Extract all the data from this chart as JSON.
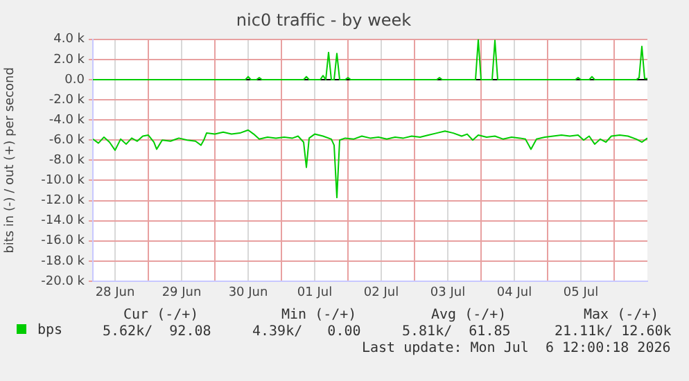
{
  "chart_data": {
    "type": "line",
    "title": "nic0 traffic - by week",
    "ylabel": "bits in (-) / out (+) per second",
    "xlim": [
      "2026-06-28T04:00",
      "2026-07-06T12:00"
    ],
    "xticks": [
      {
        "value": "2026-06-28T12:00",
        "label": "28 Jun"
      },
      {
        "value": "2026-06-29T00:00",
        "label": null
      },
      {
        "value": "2026-06-29T12:00",
        "label": "29 Jun"
      },
      {
        "value": "2026-06-30T00:00",
        "label": null
      },
      {
        "value": "2026-06-30T12:00",
        "label": "30 Jun"
      },
      {
        "value": "2026-07-01T00:00",
        "label": null
      },
      {
        "value": "2026-07-01T12:00",
        "label": "01 Jul"
      },
      {
        "value": "2026-07-02T00:00",
        "label": null
      },
      {
        "value": "2026-07-02T12:00",
        "label": "02 Jul"
      },
      {
        "value": "2026-07-03T00:00",
        "label": null
      },
      {
        "value": "2026-07-03T12:00",
        "label": "03 Jul"
      },
      {
        "value": "2026-07-04T00:00",
        "label": null
      },
      {
        "value": "2026-07-04T12:00",
        "label": "04 Jul"
      },
      {
        "value": "2026-07-05T00:00",
        "label": null
      },
      {
        "value": "2026-07-05T12:00",
        "label": "05 Jul"
      },
      {
        "value": "2026-07-06T00:00",
        "label": null
      }
    ],
    "ylim": [
      -20000,
      4000
    ],
    "yticks": [
      {
        "value": 4000,
        "label": "4.0 k"
      },
      {
        "value": 2000,
        "label": "2.0 k"
      },
      {
        "value": 0,
        "label": "0.0"
      },
      {
        "value": -2000,
        "label": "-2.0 k"
      },
      {
        "value": -4000,
        "label": "-4.0 k"
      },
      {
        "value": -6000,
        "label": "-6.0 k"
      },
      {
        "value": -8000,
        "label": "-8.0 k"
      },
      {
        "value": -10000,
        "label": "-10.0 k"
      },
      {
        "value": -12000,
        "label": "-12.0 k"
      },
      {
        "value": -14000,
        "label": "-14.0 k"
      },
      {
        "value": -16000,
        "label": "-16.0 k"
      },
      {
        "value": -18000,
        "label": "-18.0 k"
      },
      {
        "value": -20000,
        "label": "-20.0 k"
      }
    ],
    "grid": true,
    "legend": "bottom left",
    "marker": "none",
    "line_style": "solid",
    "ref_lines": [
      {
        "axis": "y",
        "value": 0,
        "color": "#000000"
      }
    ],
    "series": [
      {
        "name": "bps",
        "color": "#00cc00",
        "x": [
          "2026-06-28T04:00",
          "2026-06-28T06:00",
          "2026-06-28T08:00",
          "2026-06-28T10:00",
          "2026-06-28T12:00",
          "2026-06-28T14:00",
          "2026-06-28T16:00",
          "2026-06-28T18:00",
          "2026-06-28T20:00",
          "2026-06-28T22:00",
          "2026-06-29T00:00",
          "2026-06-29T02:00",
          "2026-06-29T03:00",
          "2026-06-29T05:00",
          "2026-06-29T08:00",
          "2026-06-29T11:00",
          "2026-06-29T14:00",
          "2026-06-29T17:00",
          "2026-06-29T19:00",
          "2026-06-29T20:00",
          "2026-06-29T21:00",
          "2026-06-30T00:00",
          "2026-06-30T03:00",
          "2026-06-30T06:00",
          "2026-06-30T09:00",
          "2026-06-30T12:00",
          "2026-06-30T14:00",
          "2026-06-30T16:00",
          "2026-06-30T19:00",
          "2026-06-30T22:00",
          "2026-07-01T01:00",
          "2026-07-01T04:00",
          "2026-07-01T06:00",
          "2026-07-01T08:00",
          "2026-07-01T09:00",
          "2026-07-01T10:00",
          "2026-07-01T12:00",
          "2026-07-01T15:00",
          "2026-07-01T18:00",
          "2026-07-01T19:00",
          "2026-07-01T20:00",
          "2026-07-01T21:00",
          "2026-07-01T23:00",
          "2026-07-02T02:00",
          "2026-07-02T05:00",
          "2026-07-02T08:00",
          "2026-07-02T11:00",
          "2026-07-02T14:00",
          "2026-07-02T17:00",
          "2026-07-02T20:00",
          "2026-07-02T23:00",
          "2026-07-03T02:00",
          "2026-07-03T05:00",
          "2026-07-03T08:00",
          "2026-07-03T11:00",
          "2026-07-03T14:00",
          "2026-07-03T17:00",
          "2026-07-03T19:00",
          "2026-07-03T21:00",
          "2026-07-03T23:00",
          "2026-07-04T02:00",
          "2026-07-04T05:00",
          "2026-07-04T08:00",
          "2026-07-04T11:00",
          "2026-07-04T14:00",
          "2026-07-04T16:00",
          "2026-07-04T18:00",
          "2026-07-04T20:00",
          "2026-07-04T23:00",
          "2026-07-05T02:00",
          "2026-07-05T05:00",
          "2026-07-05T08:00",
          "2026-07-05T11:00",
          "2026-07-05T13:00",
          "2026-07-05T15:00",
          "2026-07-05T17:00",
          "2026-07-05T19:00",
          "2026-07-05T21:00",
          "2026-07-05T23:00",
          "2026-07-06T02:00",
          "2026-07-06T05:00",
          "2026-07-06T08:00",
          "2026-07-06T10:00",
          "2026-07-06T12:00"
        ],
        "values": [
          -5900,
          -6300,
          -5700,
          -6200,
          -7000,
          -5900,
          -6400,
          -5800,
          -6100,
          -5600,
          -5500,
          -6200,
          -6900,
          -6000,
          -6100,
          -5800,
          -6000,
          -6100,
          -6500,
          -6000,
          -5300,
          -5400,
          -5200,
          -5400,
          -5300,
          -5000,
          -5400,
          -5900,
          -5700,
          -5800,
          -5700,
          -5800,
          -5600,
          -6200,
          -8700,
          -5800,
          -5400,
          -5600,
          -5900,
          -6500,
          -11700,
          -6000,
          -5800,
          -5900,
          -5600,
          -5800,
          -5700,
          -5900,
          -5700,
          -5800,
          -5600,
          -5700,
          -5500,
          -5300,
          -5100,
          -5300,
          -5600,
          -5400,
          -6000,
          -5500,
          -5700,
          -5600,
          -5900,
          -5700,
          -5800,
          -5900,
          -6900,
          -5900,
          -5700,
          -5600,
          -5500,
          -5600,
          -5500,
          -6000,
          -5600,
          -6400,
          -5900,
          -6200,
          -5600,
          -5500,
          -5600,
          -5900,
          -6200,
          -5800
        ]
      },
      {
        "color": "#00cc00",
        "x": [
          "2026-06-28T04:00",
          "2026-06-30T11:00",
          "2026-06-30T12:00",
          "2026-06-30T13:00",
          "2026-06-30T15:00",
          "2026-06-30T16:00",
          "2026-06-30T17:00",
          "2026-07-01T08:00",
          "2026-07-01T09:00",
          "2026-07-01T10:00",
          "2026-07-01T14:00",
          "2026-07-01T15:00",
          "2026-07-01T16:00",
          "2026-07-01T17:00",
          "2026-07-01T18:00",
          "2026-07-01T19:00",
          "2026-07-01T20:00",
          "2026-07-01T21:00",
          "2026-07-01T23:00",
          "2026-07-02T00:00",
          "2026-07-02T01:00",
          "2026-07-03T08:00",
          "2026-07-03T09:00",
          "2026-07-03T10:00",
          "2026-07-03T22:00",
          "2026-07-03T23:00",
          "2026-07-04T00:00",
          "2026-07-04T04:00",
          "2026-07-04T05:00",
          "2026-07-04T06:00",
          "2026-07-05T10:00",
          "2026-07-05T11:00",
          "2026-07-05T12:00",
          "2026-07-05T15:00",
          "2026-07-05T16:00",
          "2026-07-05T17:00",
          "2026-07-06T08:00",
          "2026-07-06T09:00",
          "2026-07-06T10:00",
          "2026-07-06T11:00",
          "2026-07-06T12:00"
        ],
        "values": [
          0,
          0,
          300,
          0,
          0,
          200,
          0,
          0,
          300,
          0,
          0,
          400,
          0,
          2700,
          0,
          0,
          2600,
          0,
          0,
          200,
          0,
          0,
          200,
          0,
          0,
          4000,
          0,
          0,
          3900,
          0,
          0,
          200,
          0,
          0,
          300,
          0,
          0,
          200,
          3300,
          100,
          100
        ]
      }
    ],
    "annotations": [
      "Cur (-/+)",
      "Min (-/+)",
      "Avg (-/+)",
      "Max (-/+)",
      "5.62k/  92.08",
      "4.39k/   0.00",
      "5.81k/  61.85",
      "21.11k/ 12.60k",
      "Last update: Mon Jul  6 12:00:18 2026"
    ]
  }
}
